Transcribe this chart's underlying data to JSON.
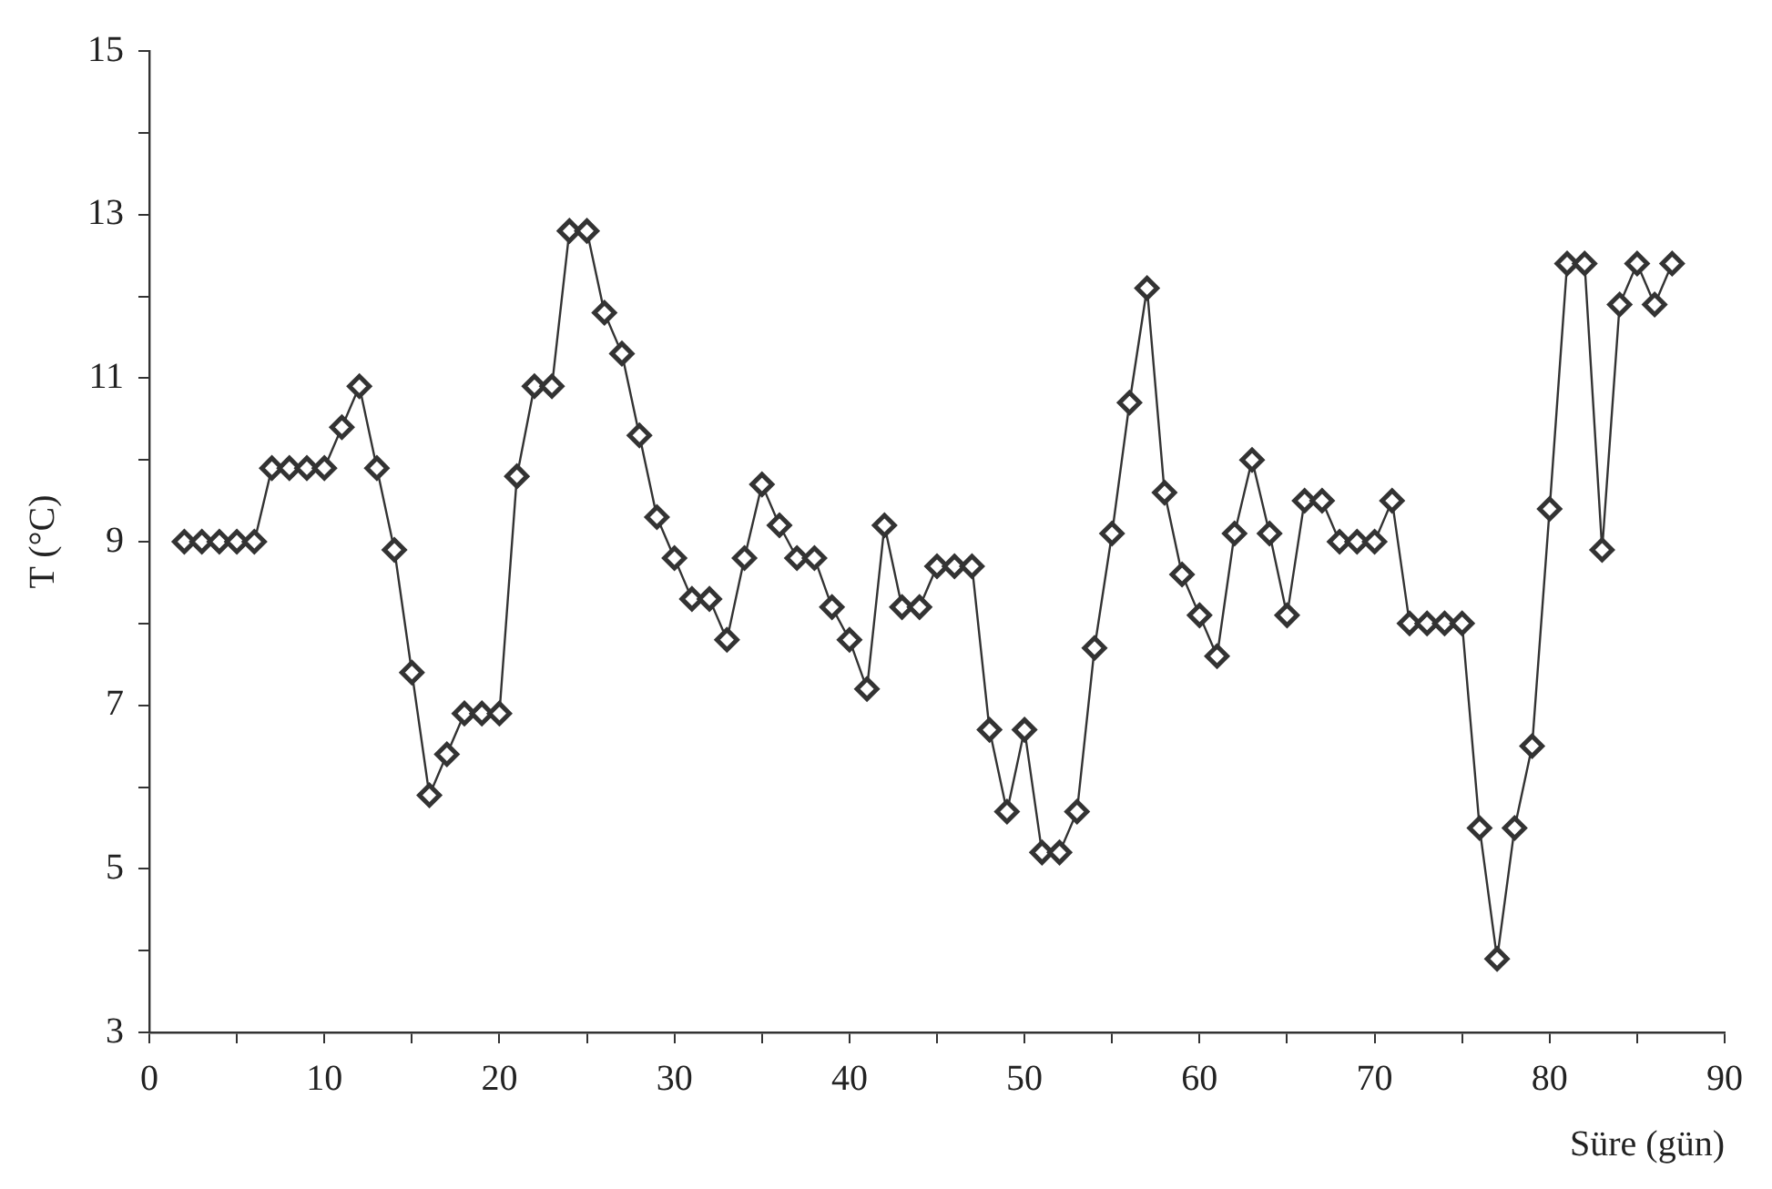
{
  "chart_data": {
    "type": "line",
    "xlabel": "Süre (gün)",
    "ylabel": "T (°C)",
    "xlim": [
      0,
      90
    ],
    "ylim": [
      3,
      15
    ],
    "xticks": [
      0,
      {
        "value": 5,
        "label": null
      },
      10,
      {
        "value": 15,
        "label": null
      },
      20,
      {
        "value": 25,
        "label": null
      },
      30,
      {
        "value": 35,
        "label": null
      },
      40,
      {
        "value": 45,
        "label": null
      },
      50,
      {
        "value": 55,
        "label": null
      },
      60,
      {
        "value": 65,
        "label": null
      },
      70,
      {
        "value": 75,
        "label": null
      },
      80,
      {
        "value": 85,
        "label": null
      },
      90
    ],
    "yticks": [
      3,
      {
        "value": 4,
        "label": null
      },
      5,
      {
        "value": 6,
        "label": null
      },
      7,
      {
        "value": 8,
        "label": null
      },
      9,
      {
        "value": 10,
        "label": null
      },
      11,
      {
        "value": 12,
        "label": null
      },
      13,
      {
        "value": 14,
        "label": null
      },
      15
    ],
    "grid": false,
    "legend": false,
    "marker": "diamond",
    "line_style": "solid",
    "series": [
      {
        "color": "#333333",
        "x": [
          2,
          3,
          4,
          5,
          6,
          7,
          8,
          9,
          10,
          11,
          12,
          13,
          14,
          15,
          16,
          17,
          18,
          19,
          20,
          21,
          22,
          23,
          24,
          25,
          26,
          27,
          28,
          29,
          30,
          31,
          32,
          33,
          34,
          35,
          36,
          37,
          38,
          39,
          40,
          41,
          42,
          43,
          44,
          45,
          46,
          47,
          48,
          49,
          50,
          51,
          52,
          53,
          54,
          55,
          56,
          57,
          58,
          59,
          60,
          61,
          62,
          63,
          64,
          65,
          66,
          67,
          68,
          69,
          70,
          71,
          72,
          73,
          74,
          75,
          76,
          77,
          78,
          79,
          80,
          81,
          82,
          83,
          84,
          85,
          86,
          87
        ],
        "values": [
          9,
          9,
          9,
          9,
          9,
          9.9,
          9.9,
          9.9,
          9.9,
          10.4,
          10.9,
          9.9,
          8.9,
          7.4,
          5.9,
          6.4,
          6.9,
          6.9,
          6.9,
          9.8,
          10.9,
          10.9,
          12.8,
          12.8,
          11.8,
          11.3,
          10.3,
          9.3,
          8.8,
          8.3,
          8.3,
          7.8,
          8.8,
          9.7,
          9.2,
          8.8,
          8.8,
          8.2,
          7.8,
          7.2,
          9.2,
          8.2,
          8.2,
          8.7,
          8.7,
          8.7,
          6.7,
          5.7,
          6.7,
          5.2,
          5.2,
          5.7,
          7.7,
          9.1,
          10.7,
          12.1,
          9.6,
          8.6,
          8.1,
          7.6,
          9.1,
          10,
          9.1,
          8.1,
          9.5,
          9.5,
          9,
          9,
          9,
          9.5,
          8,
          8,
          8,
          8,
          5.5,
          3.9,
          5.5,
          6.5,
          9.4,
          12.4,
          12.4,
          8.9,
          11.9,
          12.4,
          11.9,
          12.4
        ]
      }
    ]
  }
}
